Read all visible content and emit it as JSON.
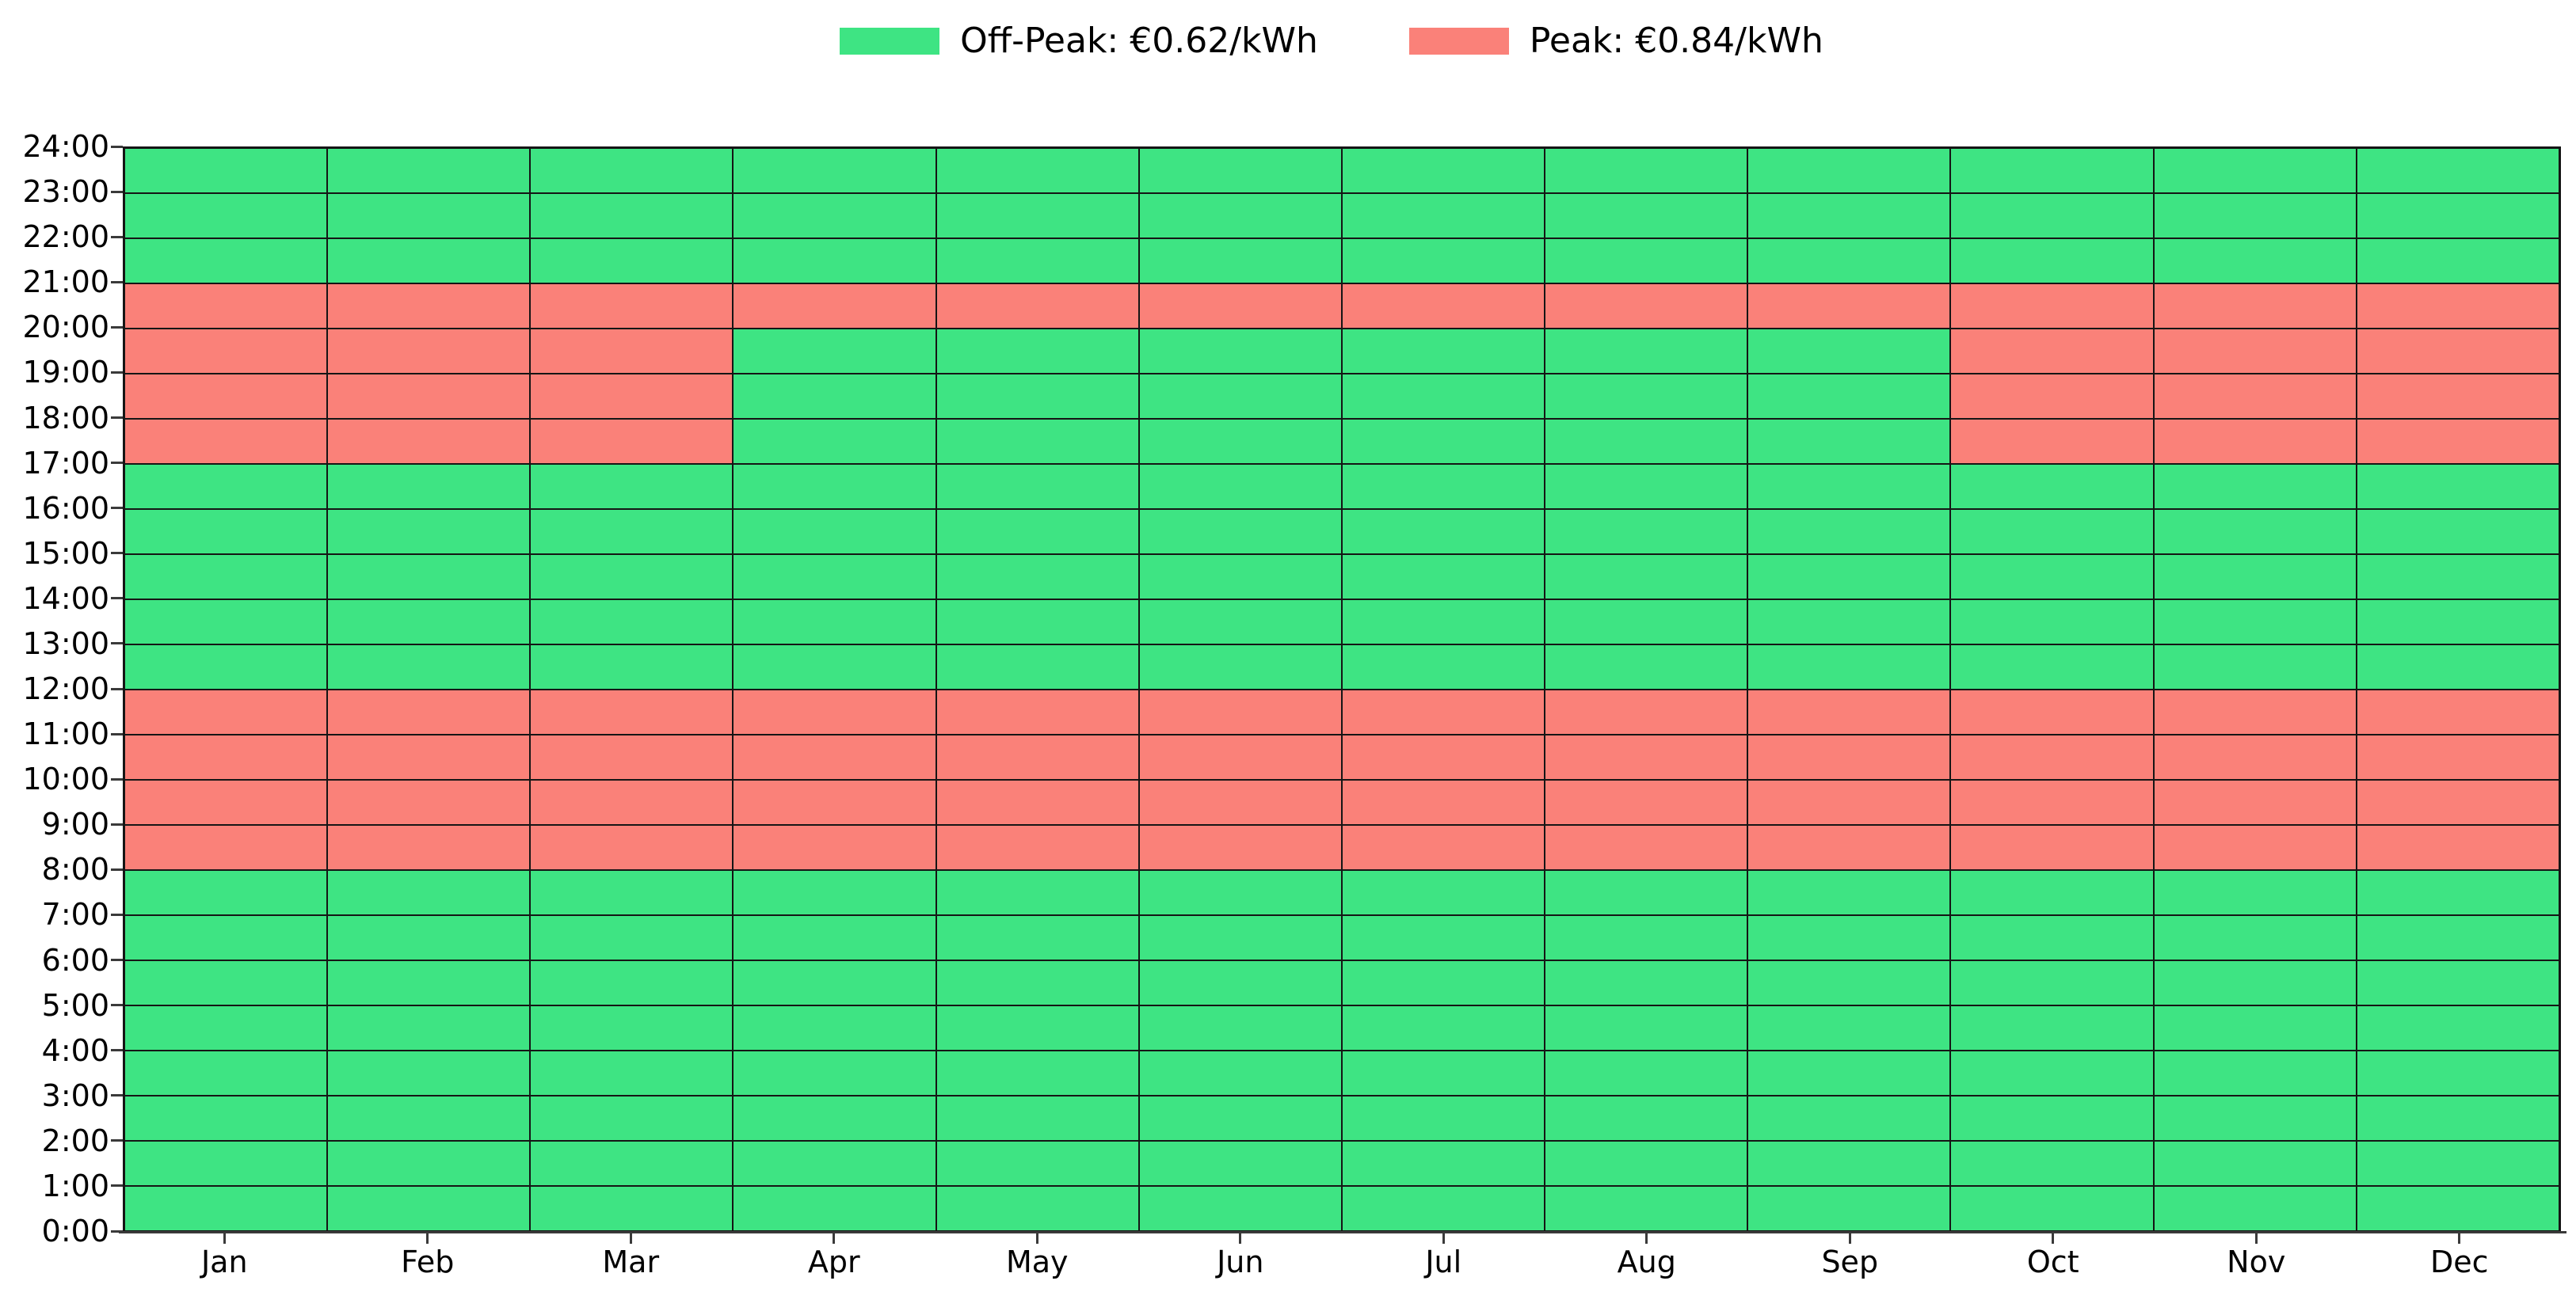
{
  "legend": {
    "items": [
      {
        "name": "off-peak",
        "label": "Off-Peak: €0.62/kWh",
        "color": "#3ee483"
      },
      {
        "name": "peak",
        "label": "Peak: €0.84/kWh",
        "color": "#fa8179"
      }
    ]
  },
  "chart_data": {
    "type": "heatmap",
    "title": "",
    "xlabel": "",
    "ylabel": "",
    "x_categories": [
      "Jan",
      "Feb",
      "Mar",
      "Apr",
      "May",
      "Jun",
      "Jul",
      "Aug",
      "Sep",
      "Oct",
      "Nov",
      "Dec"
    ],
    "y_tick_labels": [
      "0:00",
      "1:00",
      "2:00",
      "3:00",
      "4:00",
      "5:00",
      "6:00",
      "7:00",
      "8:00",
      "9:00",
      "10:00",
      "11:00",
      "12:00",
      "13:00",
      "14:00",
      "15:00",
      "16:00",
      "17:00",
      "18:00",
      "19:00",
      "20:00",
      "21:00",
      "22:00",
      "23:00",
      "24:00"
    ],
    "y_range_hours": [
      0,
      24
    ],
    "grid": true,
    "legend_position": "top-center",
    "legend_entries": [
      "Off-Peak: €0.62/kWh",
      "Peak: €0.84/kWh"
    ],
    "rates_eur_per_kwh": {
      "off_peak": 0.62,
      "peak": 0.84
    },
    "peak_hour_ranges_by_month": {
      "Jan": [
        [
          8,
          12
        ],
        [
          17,
          21
        ]
      ],
      "Feb": [
        [
          8,
          12
        ],
        [
          17,
          21
        ]
      ],
      "Mar": [
        [
          8,
          12
        ],
        [
          17,
          21
        ]
      ],
      "Apr": [
        [
          8,
          12
        ],
        [
          20,
          21
        ]
      ],
      "May": [
        [
          8,
          12
        ],
        [
          20,
          21
        ]
      ],
      "Jun": [
        [
          8,
          12
        ],
        [
          20,
          21
        ]
      ],
      "Jul": [
        [
          8,
          12
        ],
        [
          20,
          21
        ]
      ],
      "Aug": [
        [
          8,
          12
        ],
        [
          20,
          21
        ]
      ],
      "Sep": [
        [
          8,
          12
        ],
        [
          20,
          21
        ]
      ],
      "Oct": [
        [
          8,
          12
        ],
        [
          17,
          21
        ]
      ],
      "Nov": [
        [
          8,
          12
        ],
        [
          17,
          21
        ]
      ],
      "Dec": [
        [
          8,
          12
        ],
        [
          17,
          21
        ]
      ]
    },
    "colors": {
      "off_peak": "#3ee483",
      "peak": "#fa8179",
      "grid_line": "#151515",
      "axis": "#3a3a3a",
      "text": "#000000",
      "background": "#ffffff"
    }
  }
}
